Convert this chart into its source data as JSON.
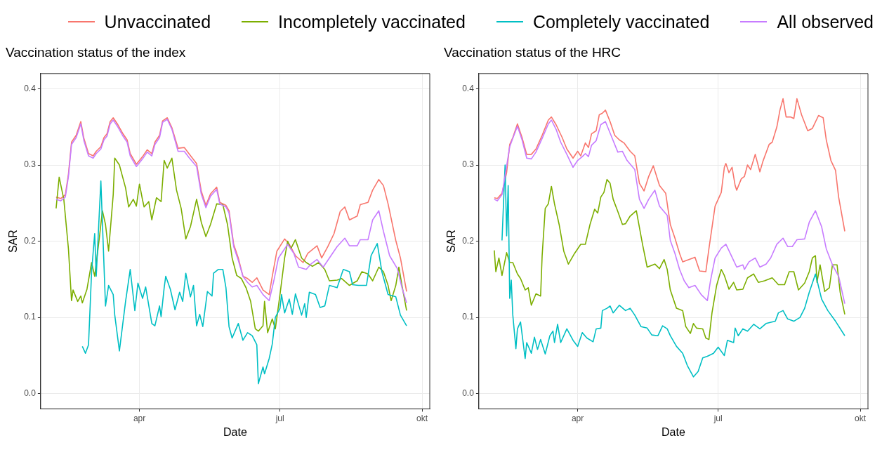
{
  "chart_data": [
    {
      "type": "line",
      "title": "Vaccination status of the index",
      "xlabel": "Date",
      "ylabel": "SAR",
      "xlim": [
        "--01-27",
        "--10-06"
      ],
      "xticks": [
        {
          "value": "--04-01",
          "label": "apr"
        },
        {
          "value": "--07-01",
          "label": "jul"
        },
        {
          "value": "--10-01",
          "label": "okt"
        }
      ],
      "ylim": [
        -0.02,
        0.42
      ],
      "yticks": [
        {
          "value": 0,
          "label": "0.0"
        },
        {
          "value": 0.1,
          "label": "0.1"
        },
        {
          "value": 0.2,
          "label": "0.2"
        },
        {
          "value": 0.3,
          "label": "0.3"
        },
        {
          "value": 0.4,
          "label": "0.4"
        }
      ],
      "grid": true,
      "legend": "top",
      "series": [
        {
          "name": "Unvaccinated",
          "color": "#f8766d",
          "x": [
            "--02-06",
            "--02-09",
            "--02-12",
            "--02-14",
            "--02-16",
            "--02-19",
            "--02-22",
            "--02-24",
            "--02-27",
            "--03-02",
            "--03-04",
            "--03-07",
            "--03-09",
            "--03-11",
            "--03-13",
            "--03-15",
            "--03-18",
            "--03-21",
            "--03-24",
            "--03-26",
            "--03-30",
            "--04-03",
            "--04-06",
            "--04-09",
            "--04-11",
            "--04-14",
            "--04-16",
            "--04-19",
            "--04-22",
            "--04-26",
            "--04-30",
            "--05-03",
            "--05-08",
            "--05-11",
            "--05-14",
            "--05-17",
            "--05-21",
            "--05-23",
            "--05-27",
            "--05-29",
            "--06-01",
            "--06-04",
            "--06-07",
            "--06-10",
            "--06-13",
            "--06-16",
            "--06-20",
            "--06-24",
            "--06-26",
            "--06-29",
            "--07-04",
            "--07-07",
            "--07-11",
            "--07-16",
            "--07-19",
            "--07-25",
            "--07-28",
            "--08-01",
            "--08-05",
            "--08-09",
            "--08-12",
            "--08-15",
            "--08-20",
            "--08-22",
            "--08-27",
            "--08-30",
            "--09-03",
            "--09-06",
            "--09-09",
            "--09-14",
            "--09-17",
            "--09-21"
          ],
          "values": [
            0.258,
            0.256,
            0.261,
            0.288,
            0.33,
            0.339,
            0.357,
            0.335,
            0.315,
            0.312,
            0.318,
            0.324,
            0.336,
            0.341,
            0.357,
            0.362,
            0.353,
            0.342,
            0.333,
            0.315,
            0.301,
            0.311,
            0.32,
            0.315,
            0.33,
            0.339,
            0.358,
            0.362,
            0.349,
            0.322,
            0.323,
            0.315,
            0.302,
            0.266,
            0.247,
            0.262,
            0.271,
            0.251,
            0.247,
            0.24,
            0.196,
            0.178,
            0.154,
            0.151,
            0.146,
            0.152,
            0.136,
            0.13,
            0.154,
            0.187,
            0.203,
            0.196,
            0.181,
            0.172,
            0.184,
            0.194,
            0.178,
            0.193,
            0.21,
            0.239,
            0.245,
            0.228,
            0.233,
            0.248,
            0.251,
            0.267,
            0.281,
            0.273,
            0.249,
            0.201,
            0.178,
            0.134
          ]
        },
        {
          "name": "Incompletely vaccinated",
          "color": "#7cae00",
          "x": [
            "--02-06",
            "--02-08",
            "--02-11",
            "--02-14",
            "--02-16",
            "--02-17",
            "--02-20",
            "--02-22",
            "--02-23",
            "--02-26",
            "--03-01",
            "--03-03",
            "--03-06",
            "--03-08",
            "--03-10",
            "--03-12",
            "--03-15",
            "--03-16",
            "--03-19",
            "--03-21",
            "--03-23",
            "--03-25",
            "--03-28",
            "--03-30",
            "--04-01",
            "--04-03",
            "--04-04",
            "--04-07",
            "--04-09",
            "--04-12",
            "--04-15",
            "--04-17",
            "--04-19",
            "--04-22",
            "--04-25",
            "--04-28",
            "--05-01",
            "--05-04",
            "--05-08",
            "--05-11",
            "--05-14",
            "--05-17",
            "--05-21",
            "--05-25",
            "--05-28",
            "--05-31",
            "--06-03",
            "--06-06",
            "--06-09",
            "--06-12",
            "--06-15",
            "--06-17",
            "--06-20",
            "--06-21",
            "--06-23",
            "--06-26",
            "--06-28",
            "--07-01",
            "--07-04",
            "--07-06",
            "--07-08",
            "--07-11",
            "--07-15",
            "--07-18",
            "--07-22",
            "--07-26",
            "--07-30",
            "--08-02",
            "--08-07",
            "--08-10",
            "--08-15",
            "--08-20",
            "--08-23",
            "--08-27",
            "--08-30",
            "--09-03",
            "--09-06",
            "--09-09",
            "--09-11",
            "--09-14",
            "--09-16",
            "--09-18",
            "--09-21"
          ],
          "values": [
            0.243,
            0.284,
            0.255,
            0.19,
            0.122,
            0.136,
            0.121,
            0.128,
            0.119,
            0.137,
            0.172,
            0.154,
            0.204,
            0.24,
            0.222,
            0.187,
            0.261,
            0.309,
            0.3,
            0.285,
            0.27,
            0.245,
            0.255,
            0.246,
            0.275,
            0.254,
            0.245,
            0.252,
            0.228,
            0.257,
            0.252,
            0.306,
            0.296,
            0.309,
            0.267,
            0.243,
            0.203,
            0.219,
            0.255,
            0.225,
            0.206,
            0.222,
            0.249,
            0.248,
            0.222,
            0.178,
            0.155,
            0.151,
            0.139,
            0.121,
            0.085,
            0.082,
            0.089,
            0.121,
            0.08,
            0.098,
            0.085,
            0.13,
            0.178,
            0.2,
            0.19,
            0.202,
            0.178,
            0.172,
            0.167,
            0.172,
            0.163,
            0.148,
            0.149,
            0.151,
            0.142,
            0.148,
            0.16,
            0.157,
            0.148,
            0.166,
            0.16,
            0.142,
            0.122,
            0.142,
            0.166,
            0.142,
            0.109
          ]
        },
        {
          "name": "Completely vaccinated",
          "color": "#00bfc4",
          "x": [
            "--02-23",
            "--02-25",
            "--02-27",
            "--03-01",
            "--03-03",
            "--03-04",
            "--03-07",
            "--03-10",
            "--03-12",
            "--03-15",
            "--03-16",
            "--03-19",
            "--03-23",
            "--03-26",
            "--03-29",
            "--03-31",
            "--04-03",
            "--04-05",
            "--04-09",
            "--04-11",
            "--04-14",
            "--04-15",
            "--04-17",
            "--04-18",
            "--04-21",
            "--04-24",
            "--04-27",
            "--04-29",
            "--05-01",
            "--05-04",
            "--05-06",
            "--05-08",
            "--05-10",
            "--05-12",
            "--05-15",
            "--05-18",
            "--05-19",
            "--05-22",
            "--05-25",
            "--05-27",
            "--05-29",
            "--05-31",
            "--06-04",
            "--06-07",
            "--06-10",
            "--06-13",
            "--06-16",
            "--06-17",
            "--06-20",
            "--06-21",
            "--06-24",
            "--06-26",
            "--06-28",
            "--07-01",
            "--07-02",
            "--07-04",
            "--07-07",
            "--07-09",
            "--07-11",
            "--07-15",
            "--07-17",
            "--07-18",
            "--07-20",
            "--07-24",
            "--07-27",
            "--07-30",
            "--08-02",
            "--08-07",
            "--08-11",
            "--08-15",
            "--08-17",
            "--08-21",
            "--08-26",
            "--08-29",
            "--09-02",
            "--09-05",
            "--09-09",
            "--09-14",
            "--09-17",
            "--09-21"
          ],
          "values": [
            0.062,
            0.053,
            0.064,
            0.16,
            0.21,
            0.154,
            0.279,
            0.115,
            0.142,
            0.13,
            0.103,
            0.056,
            0.121,
            0.163,
            0.109,
            0.145,
            0.125,
            0.14,
            0.092,
            0.089,
            0.115,
            0.101,
            0.139,
            0.154,
            0.137,
            0.11,
            0.133,
            0.121,
            0.158,
            0.127,
            0.142,
            0.089,
            0.104,
            0.088,
            0.134,
            0.128,
            0.158,
            0.163,
            0.163,
            0.139,
            0.088,
            0.073,
            0.092,
            0.07,
            0.08,
            0.076,
            0.064,
            0.013,
            0.035,
            0.026,
            0.046,
            0.065,
            0.1,
            0.112,
            0.13,
            0.106,
            0.124,
            0.104,
            0.131,
            0.103,
            0.118,
            0.1,
            0.133,
            0.13,
            0.113,
            0.115,
            0.142,
            0.139,
            0.163,
            0.16,
            0.143,
            0.142,
            0.142,
            0.181,
            0.197,
            0.16,
            0.13,
            0.127,
            0.103,
            0.089
          ]
        },
        {
          "name": "All observed",
          "color": "#c77cff",
          "x": [
            "--02-06",
            "--02-09",
            "--02-12",
            "--02-14",
            "--02-16",
            "--02-19",
            "--02-22",
            "--02-24",
            "--02-27",
            "--03-02",
            "--03-04",
            "--03-07",
            "--03-09",
            "--03-11",
            "--03-13",
            "--03-15",
            "--03-18",
            "--03-21",
            "--03-24",
            "--03-26",
            "--03-30",
            "--04-03",
            "--04-06",
            "--04-09",
            "--04-11",
            "--04-14",
            "--04-16",
            "--04-19",
            "--04-22",
            "--04-26",
            "--04-30",
            "--05-03",
            "--05-08",
            "--05-11",
            "--05-14",
            "--05-17",
            "--05-21",
            "--05-23",
            "--05-27",
            "--05-29",
            "--06-01",
            "--06-04",
            "--06-07",
            "--06-10",
            "--06-13",
            "--06-16",
            "--06-20",
            "--06-24",
            "--06-27",
            "--06-30",
            "--07-06",
            "--07-10",
            "--07-13",
            "--07-18",
            "--07-21",
            "--07-25",
            "--07-29",
            "--08-02",
            "--08-07",
            "--08-12",
            "--08-15",
            "--08-20",
            "--08-22",
            "--08-27",
            "--08-30",
            "--09-03",
            "--09-06",
            "--09-10",
            "--09-15",
            "--09-18",
            "--09-21"
          ],
          "values": [
            0.255,
            0.253,
            0.258,
            0.285,
            0.327,
            0.336,
            0.354,
            0.332,
            0.312,
            0.309,
            0.315,
            0.321,
            0.333,
            0.338,
            0.354,
            0.359,
            0.35,
            0.339,
            0.33,
            0.312,
            0.298,
            0.308,
            0.317,
            0.312,
            0.327,
            0.336,
            0.356,
            0.36,
            0.347,
            0.318,
            0.318,
            0.31,
            0.298,
            0.262,
            0.244,
            0.259,
            0.268,
            0.249,
            0.245,
            0.237,
            0.193,
            0.175,
            0.154,
            0.146,
            0.14,
            0.142,
            0.13,
            0.122,
            0.148,
            0.178,
            0.196,
            0.184,
            0.166,
            0.163,
            0.17,
            0.176,
            0.166,
            0.178,
            0.193,
            0.204,
            0.194,
            0.194,
            0.202,
            0.202,
            0.228,
            0.24,
            0.213,
            0.181,
            0.164,
            0.139,
            0.119
          ]
        }
      ]
    },
    {
      "type": "line",
      "title": "Vaccination status of the HRC",
      "xlabel": "Date",
      "ylabel": "SAR",
      "xlim": [
        "--01-27",
        "--10-06"
      ],
      "xticks": [
        {
          "value": "--04-01",
          "label": "apr"
        },
        {
          "value": "--07-01",
          "label": "jul"
        },
        {
          "value": "--10-01",
          "label": "okt"
        }
      ],
      "ylim": [
        -0.02,
        0.42
      ],
      "yticks": [
        {
          "value": 0,
          "label": "0.0"
        },
        {
          "value": 0.1,
          "label": "0.1"
        },
        {
          "value": 0.2,
          "label": "0.2"
        },
        {
          "value": 0.3,
          "label": "0.3"
        },
        {
          "value": 0.4,
          "label": "0.4"
        }
      ],
      "grid": true,
      "series": [
        {
          "color": "#f8766d",
          "x": [
            "--02-06",
            "--02-08",
            "--02-11",
            "--02-14",
            "--02-16",
            "--02-18",
            "--02-21",
            "--02-24",
            "--02-27",
            "--03-02",
            "--03-05",
            "--03-09",
            "--03-13",
            "--03-15",
            "--03-18",
            "--03-22",
            "--03-25",
            "--03-29",
            "--04-01",
            "--04-03",
            "--04-06",
            "--04-08",
            "--04-10",
            "--04-13",
            "--04-15",
            "--04-17",
            "--04-19",
            "--04-22",
            "--04-25",
            "--04-28",
            "--05-01",
            "--05-05",
            "--05-08",
            "--05-11",
            "--05-14",
            "--05-17",
            "--05-20",
            "--05-24",
            "--05-28",
            "--05-31",
            "--06-03",
            "--06-06",
            "--06-08",
            "--06-12",
            "--06-16",
            "--06-19",
            "--06-23",
            "--06-25",
            "--06-29",
            "--07-03",
            "--07-05",
            "--07-06",
            "--07-08",
            "--07-10",
            "--07-12",
            "--07-13",
            "--07-16",
            "--07-18",
            "--07-20",
            "--07-22",
            "--07-25",
            "--07-28",
            "--07-30",
            "--08-03",
            "--08-05",
            "--08-08",
            "--08-10",
            "--08-12",
            "--08-14",
            "--08-17",
            "--08-19",
            "--08-21",
            "--08-24",
            "--08-28",
            "--08-31",
            "--09-04",
            "--09-07",
            "--09-09",
            "--09-12",
            "--09-15",
            "--09-17",
            "--09-21"
          ],
          "values": [
            0.257,
            0.256,
            0.263,
            0.29,
            0.327,
            0.336,
            0.354,
            0.336,
            0.314,
            0.314,
            0.321,
            0.339,
            0.359,
            0.363,
            0.353,
            0.336,
            0.321,
            0.309,
            0.318,
            0.312,
            0.329,
            0.323,
            0.341,
            0.345,
            0.366,
            0.368,
            0.372,
            0.357,
            0.339,
            0.333,
            0.329,
            0.318,
            0.312,
            0.276,
            0.266,
            0.285,
            0.299,
            0.273,
            0.263,
            0.222,
            0.204,
            0.184,
            0.173,
            0.176,
            0.179,
            0.161,
            0.16,
            0.19,
            0.246,
            0.264,
            0.297,
            0.302,
            0.29,
            0.297,
            0.273,
            0.267,
            0.282,
            0.285,
            0.3,
            0.294,
            0.314,
            0.291,
            0.305,
            0.327,
            0.33,
            0.35,
            0.372,
            0.387,
            0.363,
            0.363,
            0.361,
            0.387,
            0.366,
            0.345,
            0.348,
            0.365,
            0.362,
            0.333,
            0.306,
            0.293,
            0.258,
            0.213
          ]
        },
        {
          "color": "#7cae00",
          "x": [
            "--02-06",
            "--02-07",
            "--02-09",
            "--02-11",
            "--02-14",
            "--02-16",
            "--02-18",
            "--02-21",
            "--02-23",
            "--02-26",
            "--02-28",
            "--03-02",
            "--03-05",
            "--03-08",
            "--03-09",
            "--03-11",
            "--03-13",
            "--03-15",
            "--03-17",
            "--03-20",
            "--03-23",
            "--03-26",
            "--03-30",
            "--04-03",
            "--04-06",
            "--04-09",
            "--04-12",
            "--04-14",
            "--04-16",
            "--04-18",
            "--04-20",
            "--04-22",
            "--04-24",
            "--04-27",
            "--04-30",
            "--05-02",
            "--05-05",
            "--05-09",
            "--05-13",
            "--05-16",
            "--05-21",
            "--05-24",
            "--05-27",
            "--05-29",
            "--05-31",
            "--06-04",
            "--06-08",
            "--06-10",
            "--06-13",
            "--06-15",
            "--06-17",
            "--06-21",
            "--06-23",
            "--06-25",
            "--06-27",
            "--06-30",
            "--07-03",
            "--07-05",
            "--07-08",
            "--07-11",
            "--07-13",
            "--07-17",
            "--07-20",
            "--07-24",
            "--07-27",
            "--07-31",
            "--08-05",
            "--08-09",
            "--08-13",
            "--08-16",
            "--08-19",
            "--08-22",
            "--08-26",
            "--08-29",
            "--08-31",
            "--09-02",
            "--09-03",
            "--09-05",
            "--09-08",
            "--09-11",
            "--09-13",
            "--09-16",
            "--09-18",
            "--09-21"
          ],
          "values": [
            0.188,
            0.16,
            0.178,
            0.155,
            0.185,
            0.172,
            0.172,
            0.157,
            0.151,
            0.136,
            0.139,
            0.116,
            0.131,
            0.128,
            0.181,
            0.243,
            0.249,
            0.272,
            0.249,
            0.222,
            0.187,
            0.17,
            0.184,
            0.196,
            0.196,
            0.222,
            0.242,
            0.237,
            0.258,
            0.264,
            0.281,
            0.276,
            0.255,
            0.239,
            0.222,
            0.223,
            0.233,
            0.24,
            0.196,
            0.166,
            0.17,
            0.164,
            0.176,
            0.163,
            0.136,
            0.112,
            0.109,
            0.088,
            0.079,
            0.092,
            0.086,
            0.085,
            0.073,
            0.071,
            0.106,
            0.142,
            0.163,
            0.155,
            0.137,
            0.146,
            0.136,
            0.137,
            0.152,
            0.157,
            0.146,
            0.148,
            0.152,
            0.143,
            0.143,
            0.16,
            0.16,
            0.136,
            0.145,
            0.16,
            0.178,
            0.181,
            0.146,
            0.169,
            0.134,
            0.139,
            0.169,
            0.169,
            0.133,
            0.104
          ]
        },
        {
          "color": "#00bfc4",
          "x": [
            "--02-11",
            "--02-13",
            "--02-14",
            "--02-15",
            "--02-16",
            "--02-17",
            "--02-18",
            "--02-20",
            "--02-21",
            "--02-23",
            "--02-26",
            "--02-27",
            "--03-02",
            "--03-04",
            "--03-06",
            "--03-08",
            "--03-11",
            "--03-14",
            "--03-16",
            "--03-17",
            "--03-19",
            "--03-21",
            "--03-25",
            "--03-29",
            "--04-01",
            "--04-04",
            "--04-07",
            "--04-11",
            "--04-13",
            "--04-16",
            "--04-17",
            "--04-20",
            "--04-22",
            "--04-24",
            "--04-28",
            "--05-02",
            "--05-05",
            "--05-08",
            "--05-12",
            "--05-16",
            "--05-19",
            "--05-23",
            "--05-26",
            "--05-29",
            "--05-31",
            "--06-04",
            "--06-08",
            "--06-11",
            "--06-15",
            "--06-18",
            "--06-21",
            "--06-24",
            "--06-28",
            "--07-01",
            "--07-05",
            "--07-07",
            "--07-11",
            "--07-12",
            "--07-14",
            "--07-17",
            "--07-20",
            "--07-24",
            "--07-28",
            "--08-01",
            "--08-07",
            "--08-09",
            "--08-12",
            "--08-15",
            "--08-19",
            "--08-23",
            "--08-26",
            "--08-29",
            "--09-02",
            "--09-06",
            "--09-10",
            "--09-15",
            "--09-21"
          ],
          "values": [
            0.201,
            0.3,
            0.207,
            0.273,
            0.125,
            0.149,
            0.103,
            0.059,
            0.085,
            0.094,
            0.046,
            0.067,
            0.053,
            0.074,
            0.058,
            0.071,
            0.052,
            0.076,
            0.082,
            0.067,
            0.091,
            0.067,
            0.085,
            0.07,
            0.062,
            0.08,
            0.073,
            0.068,
            0.085,
            0.086,
            0.109,
            0.112,
            0.115,
            0.106,
            0.116,
            0.109,
            0.112,
            0.103,
            0.088,
            0.086,
            0.077,
            0.076,
            0.089,
            0.085,
            0.076,
            0.062,
            0.053,
            0.037,
            0.022,
            0.029,
            0.047,
            0.049,
            0.053,
            0.061,
            0.05,
            0.07,
            0.067,
            0.086,
            0.076,
            0.085,
            0.082,
            0.091,
            0.085,
            0.092,
            0.095,
            0.106,
            0.109,
            0.098,
            0.095,
            0.1,
            0.112,
            0.133,
            0.157,
            0.124,
            0.109,
            0.095,
            0.076
          ]
        },
        {
          "color": "#c77cff",
          "x": [
            "--02-06",
            "--02-08",
            "--02-11",
            "--02-16",
            "--02-18",
            "--02-21",
            "--02-24",
            "--02-27",
            "--03-02",
            "--03-05",
            "--03-09",
            "--03-13",
            "--03-15",
            "--03-18",
            "--03-21",
            "--03-25",
            "--03-29",
            "--04-01",
            "--04-04",
            "--04-06",
            "--04-08",
            "--04-10",
            "--04-13",
            "--04-16",
            "--04-19",
            "--04-22",
            "--04-27",
            "--04-30",
            "--05-03",
            "--05-08",
            "--05-11",
            "--05-14",
            "--05-17",
            "--05-21",
            "--05-24",
            "--05-29",
            "--05-31",
            "--06-03",
            "--06-06",
            "--06-09",
            "--06-12",
            "--06-16",
            "--06-20",
            "--06-24",
            "--06-26",
            "--06-29",
            "--07-03",
            "--07-06",
            "--07-10",
            "--07-13",
            "--07-17",
            "--07-18",
            "--07-21",
            "--07-25",
            "--07-28",
            "--08-01",
            "--08-04",
            "--08-08",
            "--08-12",
            "--08-15",
            "--08-18",
            "--08-21",
            "--08-26",
            "--08-29",
            "--09-02",
            "--09-06",
            "--09-09",
            "--09-13",
            "--09-17",
            "--09-21"
          ],
          "values": [
            0.255,
            0.253,
            0.261,
            0.324,
            0.335,
            0.351,
            0.333,
            0.309,
            0.308,
            0.317,
            0.335,
            0.354,
            0.359,
            0.347,
            0.33,
            0.314,
            0.297,
            0.306,
            0.311,
            0.315,
            0.311,
            0.326,
            0.332,
            0.353,
            0.357,
            0.342,
            0.317,
            0.318,
            0.306,
            0.294,
            0.255,
            0.243,
            0.255,
            0.267,
            0.246,
            0.234,
            0.201,
            0.184,
            0.163,
            0.148,
            0.139,
            0.142,
            0.13,
            0.122,
            0.148,
            0.178,
            0.191,
            0.196,
            0.179,
            0.166,
            0.169,
            0.163,
            0.173,
            0.178,
            0.166,
            0.17,
            0.178,
            0.196,
            0.204,
            0.193,
            0.193,
            0.202,
            0.203,
            0.225,
            0.24,
            0.219,
            0.19,
            0.169,
            0.154,
            0.118
          ]
        }
      ]
    }
  ]
}
